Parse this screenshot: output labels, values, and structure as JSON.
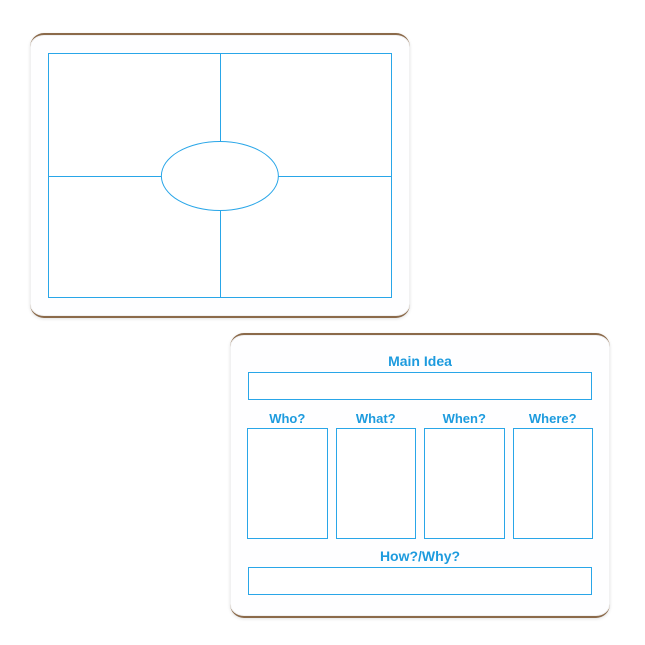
{
  "colors": {
    "line": "#29a6e8",
    "text": "#1d9bde",
    "boardBg": "#fefeff",
    "pageBg": "#ffffff",
    "boardEdge": "#8b6a4a"
  },
  "topOrganizer": {
    "type": "quadrant-with-ellipse",
    "ellipse": {
      "widthPct": 34,
      "heightPct": 28
    }
  },
  "bottomOrganizer": {
    "type": "main-idea-5w",
    "titles": {
      "main": "Main Idea",
      "howWhy": "How?/Why?"
    },
    "columns": [
      "Who?",
      "What?",
      "When?",
      "Where?"
    ],
    "fontSizes": {
      "title": 14,
      "colLabel": 13
    },
    "boxHeights": {
      "mainBox": 28,
      "colBox": 108,
      "howWhyBox": 28
    },
    "gap": 6
  }
}
